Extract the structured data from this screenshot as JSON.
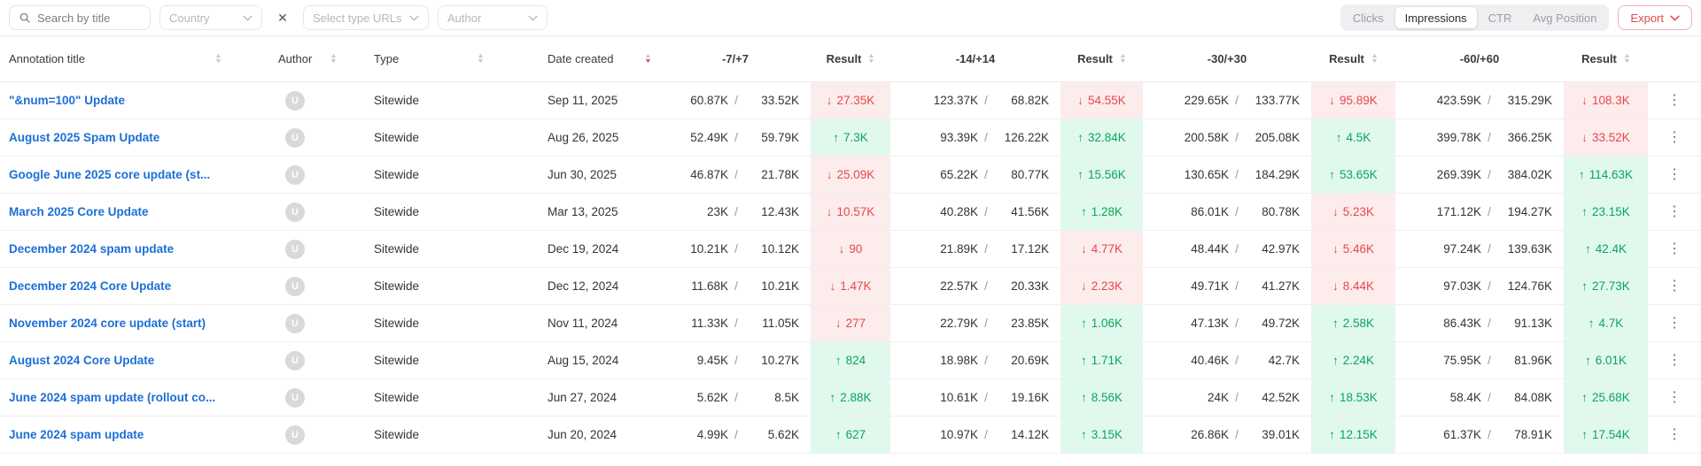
{
  "filter_bar": {
    "search": {
      "placeholder": "Search by title",
      "value": ""
    },
    "country": {
      "placeholder": "Country"
    },
    "clear_icon": "✕",
    "url_type": {
      "placeholder": "Select type URLs"
    },
    "author": {
      "placeholder": "Author"
    },
    "metric_tabs": [
      {
        "label": "Clicks",
        "active": false
      },
      {
        "label": "Impressions",
        "active": true
      },
      {
        "label": "CTR",
        "active": false
      },
      {
        "label": "Avg Position",
        "active": false
      }
    ],
    "export_label": "Export"
  },
  "table": {
    "headers": {
      "title": "Annotation title",
      "author": "Author",
      "type": "Type",
      "date": "Date created",
      "periods": [
        "-7/+7",
        "-14/+14",
        "-30/+30",
        "-60/+60"
      ],
      "result": "Result"
    },
    "sort": {
      "active_column": "Date created",
      "direction": "desc"
    },
    "rows": [
      {
        "title": "\"&num=100\" Update",
        "author_initial": "U",
        "type": "Sitewide",
        "date": "Sep 11, 2025",
        "periods": [
          {
            "before": "60.87K",
            "after": "33.52K",
            "result": "27.35K",
            "direction": "down"
          },
          {
            "before": "123.37K",
            "after": "68.82K",
            "result": "54.55K",
            "direction": "down"
          },
          {
            "before": "229.65K",
            "after": "133.77K",
            "result": "95.89K",
            "direction": "down"
          },
          {
            "before": "423.59K",
            "after": "315.29K",
            "result": "108.3K",
            "direction": "down"
          }
        ]
      },
      {
        "title": "August 2025 Spam Update",
        "author_initial": "U",
        "type": "Sitewide",
        "date": "Aug 26, 2025",
        "periods": [
          {
            "before": "52.49K",
            "after": "59.79K",
            "result": "7.3K",
            "direction": "up"
          },
          {
            "before": "93.39K",
            "after": "126.22K",
            "result": "32.84K",
            "direction": "up"
          },
          {
            "before": "200.58K",
            "after": "205.08K",
            "result": "4.5K",
            "direction": "up"
          },
          {
            "before": "399.78K",
            "after": "366.25K",
            "result": "33.52K",
            "direction": "down"
          }
        ]
      },
      {
        "title": "Google June 2025 core update (st...",
        "author_initial": "U",
        "type": "Sitewide",
        "date": "Jun 30, 2025",
        "periods": [
          {
            "before": "46.87K",
            "after": "21.78K",
            "result": "25.09K",
            "direction": "down"
          },
          {
            "before": "65.22K",
            "after": "80.77K",
            "result": "15.56K",
            "direction": "up"
          },
          {
            "before": "130.65K",
            "after": "184.29K",
            "result": "53.65K",
            "direction": "up"
          },
          {
            "before": "269.39K",
            "after": "384.02K",
            "result": "114.63K",
            "direction": "up"
          }
        ]
      },
      {
        "title": "March 2025 Core Update",
        "author_initial": "U",
        "type": "Sitewide",
        "date": "Mar 13, 2025",
        "periods": [
          {
            "before": "23K",
            "after": "12.43K",
            "result": "10.57K",
            "direction": "down"
          },
          {
            "before": "40.28K",
            "after": "41.56K",
            "result": "1.28K",
            "direction": "up"
          },
          {
            "before": "86.01K",
            "after": "80.78K",
            "result": "5.23K",
            "direction": "down"
          },
          {
            "before": "171.12K",
            "after": "194.27K",
            "result": "23.15K",
            "direction": "up"
          }
        ]
      },
      {
        "title": "December 2024 spam update",
        "author_initial": "U",
        "type": "Sitewide",
        "date": "Dec 19, 2024",
        "periods": [
          {
            "before": "10.21K",
            "after": "10.12K",
            "result": "90",
            "direction": "down"
          },
          {
            "before": "21.89K",
            "after": "17.12K",
            "result": "4.77K",
            "direction": "down"
          },
          {
            "before": "48.44K",
            "after": "42.97K",
            "result": "5.46K",
            "direction": "down"
          },
          {
            "before": "97.24K",
            "after": "139.63K",
            "result": "42.4K",
            "direction": "up"
          }
        ]
      },
      {
        "title": "December 2024 Core Update",
        "author_initial": "U",
        "type": "Sitewide",
        "date": "Dec 12, 2024",
        "periods": [
          {
            "before": "11.68K",
            "after": "10.21K",
            "result": "1.47K",
            "direction": "down"
          },
          {
            "before": "22.57K",
            "after": "20.33K",
            "result": "2.23K",
            "direction": "down"
          },
          {
            "before": "49.71K",
            "after": "41.27K",
            "result": "8.44K",
            "direction": "down"
          },
          {
            "before": "97.03K",
            "after": "124.76K",
            "result": "27.73K",
            "direction": "up"
          }
        ]
      },
      {
        "title": "November 2024 core update (start)",
        "author_initial": "U",
        "type": "Sitewide",
        "date": "Nov 11, 2024",
        "periods": [
          {
            "before": "11.33K",
            "after": "11.05K",
            "result": "277",
            "direction": "down"
          },
          {
            "before": "22.79K",
            "after": "23.85K",
            "result": "1.06K",
            "direction": "up"
          },
          {
            "before": "47.13K",
            "after": "49.72K",
            "result": "2.58K",
            "direction": "up"
          },
          {
            "before": "86.43K",
            "after": "91.13K",
            "result": "4.7K",
            "direction": "up"
          }
        ]
      },
      {
        "title": "August 2024 Core Update",
        "author_initial": "U",
        "type": "Sitewide",
        "date": "Aug 15, 2024",
        "periods": [
          {
            "before": "9.45K",
            "after": "10.27K",
            "result": "824",
            "direction": "up"
          },
          {
            "before": "18.98K",
            "after": "20.69K",
            "result": "1.71K",
            "direction": "up"
          },
          {
            "before": "40.46K",
            "after": "42.7K",
            "result": "2.24K",
            "direction": "up"
          },
          {
            "before": "75.95K",
            "after": "81.96K",
            "result": "6.01K",
            "direction": "up"
          }
        ]
      },
      {
        "title": "June 2024 spam update (rollout co...",
        "author_initial": "U",
        "type": "Sitewide",
        "date": "Jun 27, 2024",
        "periods": [
          {
            "before": "5.62K",
            "after": "8.5K",
            "result": "2.88K",
            "direction": "up"
          },
          {
            "before": "10.61K",
            "after": "19.16K",
            "result": "8.56K",
            "direction": "up"
          },
          {
            "before": "24K",
            "after": "42.52K",
            "result": "18.53K",
            "direction": "up"
          },
          {
            "before": "58.4K",
            "after": "84.08K",
            "result": "25.68K",
            "direction": "up"
          }
        ]
      },
      {
        "title": "June 2024 spam update",
        "author_initial": "U",
        "type": "Sitewide",
        "date": "Jun 20, 2024",
        "periods": [
          {
            "before": "4.99K",
            "after": "5.62K",
            "result": "627",
            "direction": "up"
          },
          {
            "before": "10.97K",
            "after": "14.12K",
            "result": "3.15K",
            "direction": "up"
          },
          {
            "before": "26.86K",
            "after": "39.01K",
            "result": "12.15K",
            "direction": "up"
          },
          {
            "before": "61.37K",
            "after": "78.91K",
            "result": "17.54K",
            "direction": "up"
          }
        ]
      }
    ]
  },
  "colors": {
    "link": "#1c6fd6",
    "negative": "#e5484d",
    "negative_bg": "#fdecec",
    "positive": "#0ba55e",
    "positive_bg": "#e1f8ed",
    "export": "#e5484d"
  }
}
